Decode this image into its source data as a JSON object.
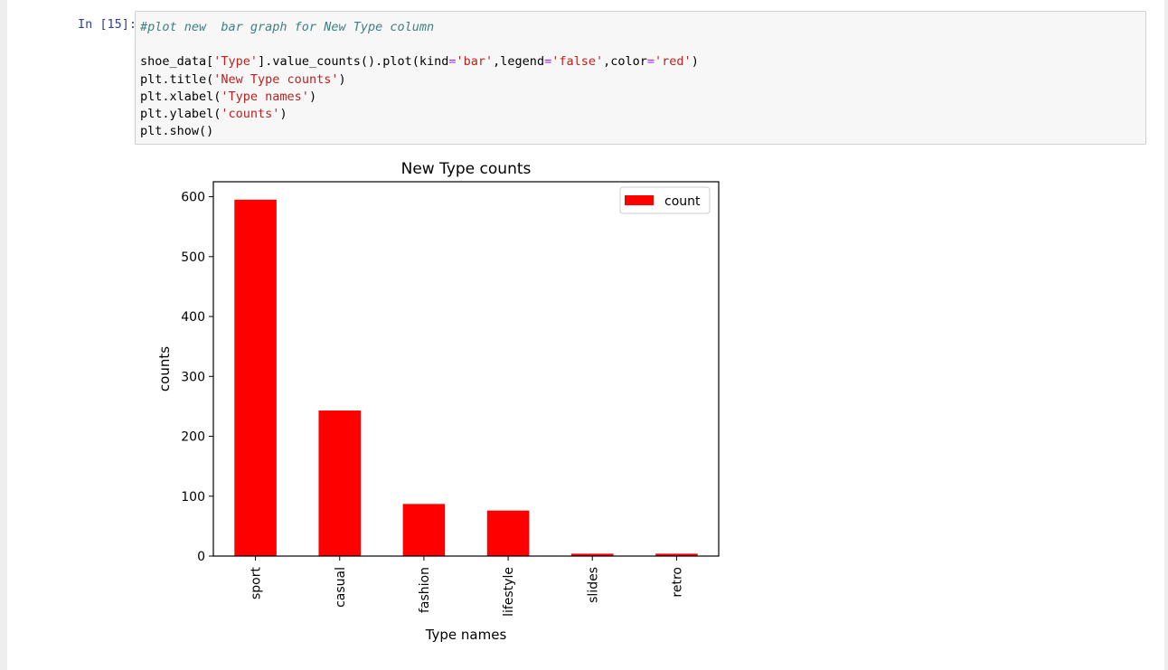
{
  "cell": {
    "prompt": "In [15]:",
    "code_lines": [
      [
        {
          "t": "#plot new  bar graph for New Type column",
          "c": "comment"
        }
      ],
      [],
      [
        {
          "t": "shoe_data[",
          "c": ""
        },
        {
          "t": "'Type'",
          "c": "str"
        },
        {
          "t": "].value_counts().plot(kind",
          "c": ""
        },
        {
          "t": "=",
          "c": "op"
        },
        {
          "t": "'bar'",
          "c": "str"
        },
        {
          "t": ",legend",
          "c": ""
        },
        {
          "t": "=",
          "c": "op"
        },
        {
          "t": "'false'",
          "c": "str"
        },
        {
          "t": ",color",
          "c": ""
        },
        {
          "t": "=",
          "c": "op"
        },
        {
          "t": "'red'",
          "c": "str"
        },
        {
          "t": ")",
          "c": ""
        }
      ],
      [
        {
          "t": "plt.title(",
          "c": ""
        },
        {
          "t": "'New Type counts'",
          "c": "str"
        },
        {
          "t": ")",
          "c": ""
        }
      ],
      [
        {
          "t": "plt.xlabel(",
          "c": ""
        },
        {
          "t": "'Type names'",
          "c": "str"
        },
        {
          "t": ")",
          "c": ""
        }
      ],
      [
        {
          "t": "plt.ylabel(",
          "c": ""
        },
        {
          "t": "'counts'",
          "c": "str"
        },
        {
          "t": ")",
          "c": ""
        }
      ],
      [
        {
          "t": "plt.show()",
          "c": ""
        }
      ]
    ]
  },
  "chart_data": {
    "type": "bar",
    "title": "New Type counts",
    "xlabel": "Type names",
    "ylabel": "counts",
    "categories": [
      "sport",
      "casual",
      "fashion",
      "lifestyle",
      "slides",
      "retro"
    ],
    "series": [
      {
        "name": "count",
        "values": [
          595,
          243,
          87,
          76,
          4,
          4
        ],
        "color": "#ff0000"
      }
    ],
    "yticks": [
      0,
      100,
      200,
      300,
      400,
      500,
      600
    ],
    "ylim": [
      0,
      625
    ],
    "grid": false,
    "legend_position": "top-right"
  }
}
